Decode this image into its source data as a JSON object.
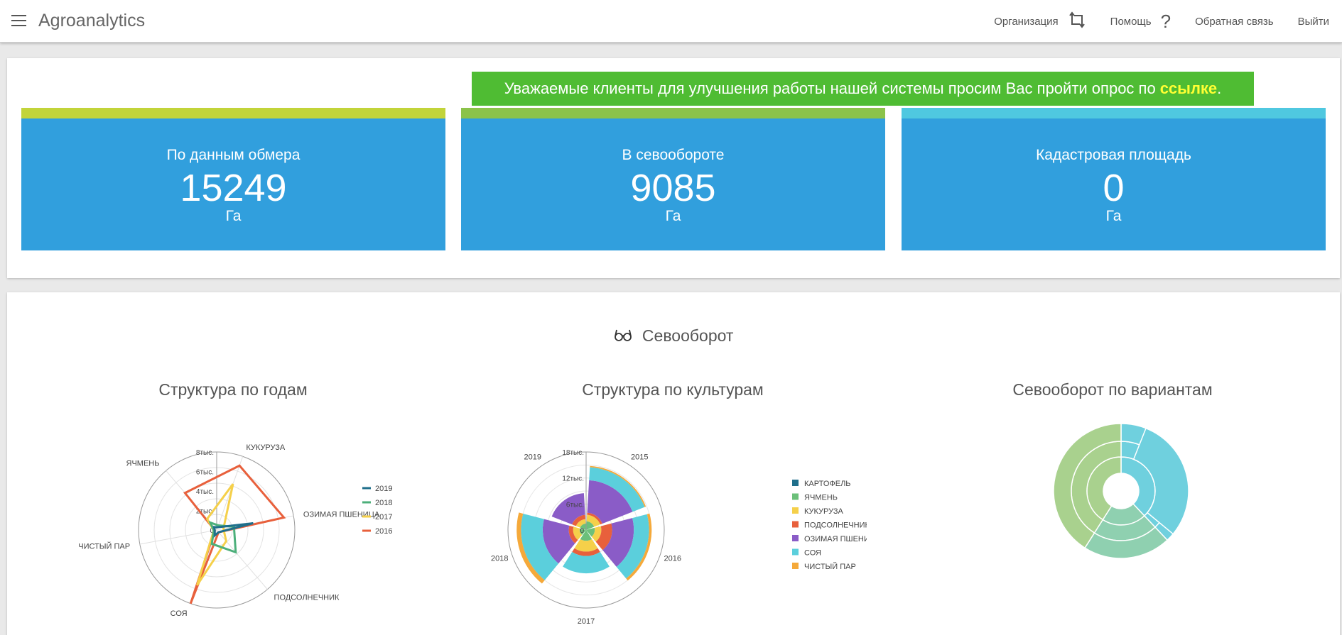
{
  "header": {
    "app_title": "Agroanalytics",
    "nav": [
      {
        "label": "Организация",
        "icon": "sync-arrows-icon"
      },
      {
        "label": "Помощь",
        "icon": "question-icon"
      },
      {
        "label": "Обратная связь"
      },
      {
        "label": "Выйти"
      }
    ]
  },
  "banner": {
    "text": "Уважаемые клиенты для улучшения работы нашей системы просим Вас пройти опрос по",
    "link": "ссылке",
    "suffix": ".",
    "color": "#4fbc33",
    "link_color": "#ffff33"
  },
  "stats": [
    {
      "label": "По данным обмера",
      "value": "15249",
      "unit": "Га",
      "accent": "#c2d43a"
    },
    {
      "label": "В севообороте",
      "value": "9085",
      "unit": "Га",
      "accent": "#8bc34a"
    },
    {
      "label": "Кадастровая площадь",
      "value": "0",
      "unit": "Га",
      "accent": "#4fc8e0"
    }
  ],
  "section": {
    "title": "Севооборот",
    "icon": "glasses-icon"
  },
  "chart_data": [
    {
      "type": "radar",
      "title": "Структура по годам",
      "axes": [
        "КУКУРУЗА",
        "ОЗИМАЯ ПШЕНИЦА",
        "ПОДСОЛНЕЧНИК",
        "СОЯ",
        "ЧИСТЫЙ ПАР",
        "ЯЧМЕНЬ"
      ],
      "tick_labels": [
        "0",
        "2тыс.",
        "4тыс.",
        "6тыс.",
        "8тыс."
      ],
      "rmax": 8000,
      "series": [
        {
          "name": "2019",
          "color": "#1f6f8b",
          "values": [
            300,
            3800,
            300,
            600,
            200,
            400
          ]
        },
        {
          "name": "2018",
          "color": "#4caf7a",
          "values": [
            500,
            1800,
            3000,
            1500,
            300,
            1000
          ]
        },
        {
          "name": "2017",
          "color": "#f5d04a",
          "values": [
            5000,
            700,
            1500,
            6000,
            300,
            1500
          ]
        },
        {
          "name": "2016",
          "color": "#e8603c",
          "values": [
            7000,
            7000,
            300,
            8000,
            200,
            5000
          ]
        }
      ],
      "legend": "right"
    },
    {
      "type": "polar-stacked-bar",
      "title": "Структура по культурам",
      "years": [
        "2015",
        "2016",
        "2017",
        "2018",
        "2019"
      ],
      "tick_labels": [
        "0",
        "6тыс.",
        "12тыс.",
        "18тыс."
      ],
      "rmax": 18000,
      "crops": [
        {
          "name": "КАРТОФЕЛЬ",
          "color": "#1f6f8b"
        },
        {
          "name": "ЯЧМЕНЬ",
          "color": "#6cc07a"
        },
        {
          "name": "КУКУРУЗА",
          "color": "#f5d04a"
        },
        {
          "name": "ПОДСОЛНЕЧНИК",
          "color": "#e8603c"
        },
        {
          "name": "ОЗИМАЯ ПШЕНИЦА",
          "color": "#8a5cc7"
        },
        {
          "name": "СОЯ",
          "color": "#5bcfdc"
        },
        {
          "name": "ЧИСТЫЙ ПАР",
          "color": "#f5a93a"
        }
      ],
      "values": [
        [
          0,
          2000,
          1500,
          500,
          7500,
          3000,
          300
        ],
        [
          0,
          2000,
          1500,
          2500,
          5000,
          3500,
          600
        ],
        [
          0,
          2500,
          2500,
          1000,
          0,
          4000,
          0
        ],
        [
          0,
          1500,
          1500,
          1000,
          6000,
          5000,
          1000
        ],
        [
          0,
          1500,
          1000,
          1000,
          5000,
          0,
          0
        ]
      ],
      "legend": "right"
    },
    {
      "type": "sunburst",
      "title": "Севооборот по вариантам",
      "colors": [
        "#a9d18e",
        "#6fd0de",
        "#8fd0b0"
      ]
    }
  ]
}
